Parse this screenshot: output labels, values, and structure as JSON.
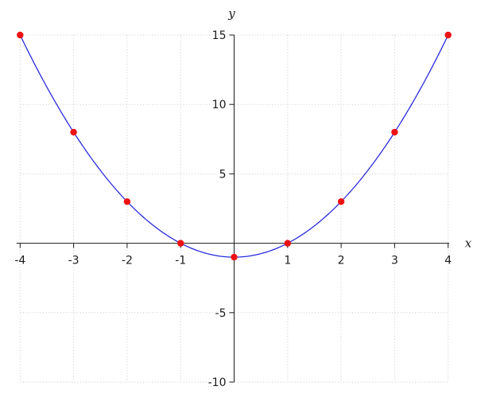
{
  "chart_data": {
    "type": "line",
    "title": "",
    "function": "y = x^2 - 1",
    "xlabel": "x",
    "ylabel": "y",
    "xlim": [
      -4.07,
      4.03
    ],
    "ylim": [
      -10,
      15
    ],
    "x_ticks": [
      -4,
      -3,
      -2,
      -1,
      1,
      2,
      3,
      4
    ],
    "y_ticks": [
      15,
      10,
      5,
      -5,
      -10
    ],
    "x_tick_labels": [
      "-4",
      "-3",
      "-2",
      "-1",
      "1",
      "2",
      "3",
      "4"
    ],
    "y_tick_labels": [
      "15",
      "10",
      "5",
      "-5",
      "-10"
    ],
    "grid": {
      "visible": true,
      "style": "dotted",
      "x_every": 1,
      "y_every": 5
    },
    "legend": null,
    "series": [
      {
        "name": "parabola-curve",
        "kind": "smooth-line",
        "color": "#2525dd",
        "sample_domain": [
          -4,
          4
        ]
      },
      {
        "name": "integer-points",
        "kind": "scatter",
        "color": "#ee1111",
        "points": [
          {
            "x": -4,
            "y": 15
          },
          {
            "x": -3,
            "y": 8
          },
          {
            "x": -2,
            "y": 3
          },
          {
            "x": -1,
            "y": 0
          },
          {
            "x": 0,
            "y": -1
          },
          {
            "x": 1,
            "y": 0
          },
          {
            "x": 2,
            "y": 3
          },
          {
            "x": 3,
            "y": 8
          },
          {
            "x": 4,
            "y": 15
          }
        ]
      }
    ],
    "colors": {
      "curve": "#2525dd",
      "points": "#ee1111",
      "grid": "#c9c9c9",
      "axis": "#1a1a1a",
      "background": "#ffffff"
    }
  }
}
